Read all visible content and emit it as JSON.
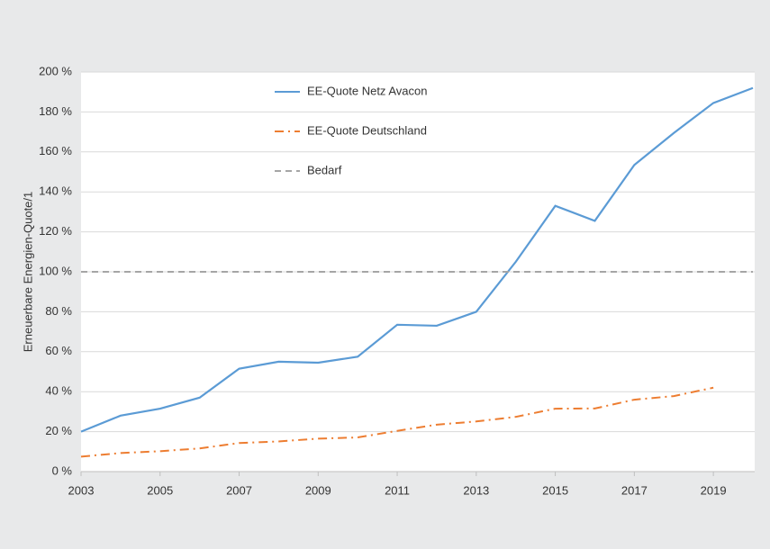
{
  "chart_data": {
    "type": "line",
    "y_label": "Erneuerbare Energien-Quote/1",
    "x": [
      2003,
      2004,
      2005,
      2006,
      2007,
      2008,
      2009,
      2010,
      2011,
      2012,
      2013,
      2014,
      2015,
      2016,
      2017,
      2018,
      2019,
      2020
    ],
    "series": [
      {
        "name": "EE-Quote Netz Avacon",
        "color": "#5b9bd5",
        "dash": "solid",
        "values": [
          20,
          28,
          31.5,
          37,
          51.5,
          55,
          54.5,
          57.5,
          73.5,
          73,
          80,
          105,
          133,
          125.5,
          153.5,
          169.5,
          184.5,
          192
        ]
      },
      {
        "name": "EE-Quote Deutschland",
        "color": "#ed7d31",
        "dash": "dashdot",
        "values": [
          7.5,
          9.3,
          10.2,
          11.6,
          14.3,
          15.1,
          16.5,
          17.1,
          20.4,
          23.5,
          25.1,
          27.4,
          31.5,
          31.6,
          36,
          37.8,
          42,
          null
        ]
      },
      {
        "name": "Bedarf",
        "color": "#a5a5a5",
        "dash": "dashed",
        "values": [
          100,
          100,
          100,
          100,
          100,
          100,
          100,
          100,
          100,
          100,
          100,
          100,
          100,
          100,
          100,
          100,
          100,
          100
        ]
      }
    ],
    "xlim": [
      2003,
      2020
    ],
    "xticks": [
      2003,
      2005,
      2007,
      2009,
      2011,
      2013,
      2015,
      2017,
      2019
    ],
    "ylim": [
      0,
      200
    ],
    "yticks": [
      {
        "value": 0,
        "label": "0 %"
      },
      {
        "value": 20,
        "label": "20 %"
      },
      {
        "value": 40,
        "label": "40 %"
      },
      {
        "value": 60,
        "label": "60 %"
      },
      {
        "value": 80,
        "label": "80 %"
      },
      {
        "value": 100,
        "label": "100 %"
      },
      {
        "value": 120,
        "label": "120 %"
      },
      {
        "value": 140,
        "label": "140 %"
      },
      {
        "value": 160,
        "label": "160 %"
      },
      {
        "value": 180,
        "label": "180 %"
      },
      {
        "value": 200,
        "label": "200 %"
      }
    ],
    "grid": true,
    "legend": "top"
  }
}
